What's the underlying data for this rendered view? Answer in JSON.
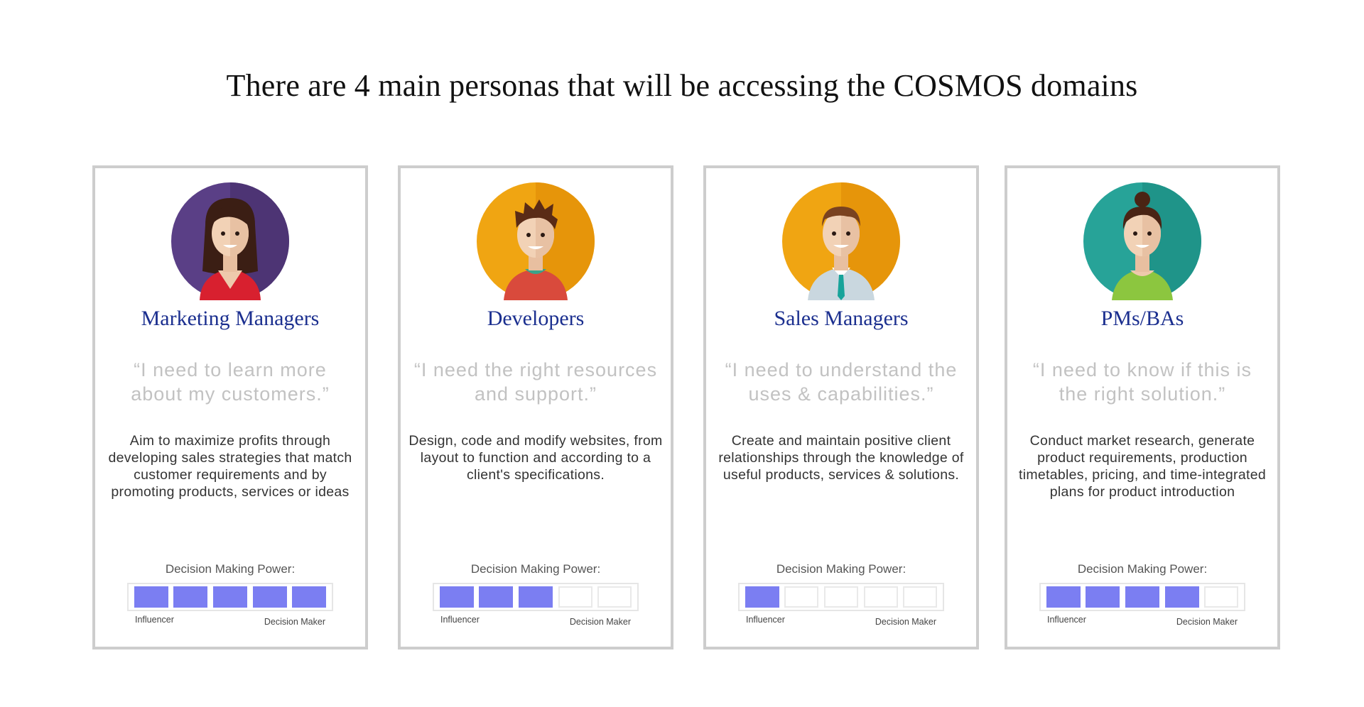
{
  "page": {
    "title": "There are 4 main personas that will be accessing the COSMOS domains"
  },
  "colors": {
    "role_title": "#1b2f8f",
    "quote_text": "#c2c2c2",
    "meter_on": "#7b7ef2",
    "card_border": "#cdcdcd"
  },
  "personas": [
    {
      "role": "Marketing Managers",
      "avatar_icon": "woman-avatar-icon",
      "avatar_bg": "#5a3f86",
      "quote": "“I need to learn more about my customers.”",
      "description": "Aim to maximize profits through developing sales strategies that match customer requirements and by promoting products, services or ideas",
      "power_label": "Decision Making Power:",
      "power_level": 5,
      "power_max": 5,
      "scale_low": "Influencer",
      "scale_high": "Decision Maker"
    },
    {
      "role": "Developers",
      "avatar_icon": "developer-avatar-icon",
      "avatar_bg": "#f0a512",
      "quote": "“I need the right resources and support.”",
      "description": "Design, code and modify websites, from layout to function and according to a client's specifications.",
      "power_label": "Decision Making Power:",
      "power_level": 3,
      "power_max": 5,
      "scale_low": "Influencer",
      "scale_high": "Decision Maker"
    },
    {
      "role": "Sales Managers",
      "avatar_icon": "salesman-avatar-icon",
      "avatar_bg": "#f0a512",
      "quote": "“I need to understand the uses & capabilities.”",
      "description": "Create and maintain positive client relationships through the knowledge of useful products, services & solutions.",
      "power_label": "Decision Making Power:",
      "power_level": 1,
      "power_max": 5,
      "scale_low": "Influencer",
      "scale_high": "Decision Maker"
    },
    {
      "role": "PMs/BAs",
      "avatar_icon": "pm-avatar-icon",
      "avatar_bg": "#27a398",
      "quote": "“I need to know if this is the right solution.”",
      "description": "Conduct market research, generate product requirements, production timetables, pricing, and time-integrated plans for product introduction",
      "power_label": "Decision Making Power:",
      "power_level": 4,
      "power_max": 5,
      "scale_low": "Influencer",
      "scale_high": "Decision Maker"
    }
  ]
}
